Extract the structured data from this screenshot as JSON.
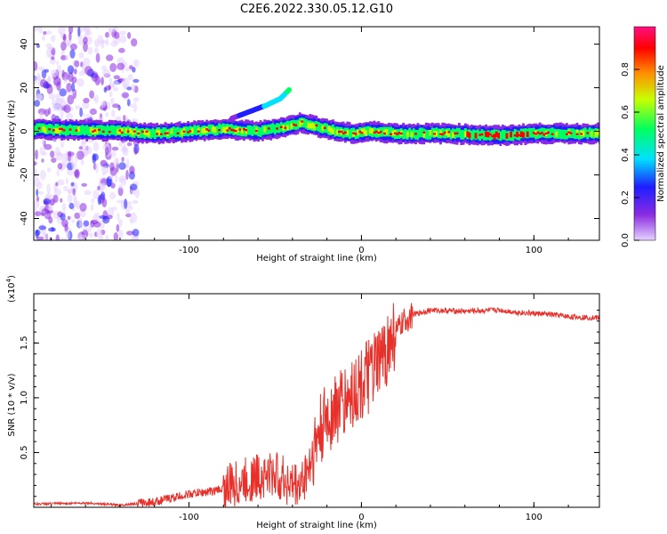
{
  "title": "C2E6.2022.330.05.12.G10",
  "chart_data": [
    {
      "type": "heatmap",
      "xlabel": "Height of straight line (km)",
      "ylabel": "Frequency (Hz)",
      "xlim": [
        -190,
        138
      ],
      "ylim": [
        -50,
        48
      ],
      "xticks": [
        -100,
        0,
        100
      ],
      "xtick_labels": [
        "-100",
        "0",
        "100"
      ],
      "yticks": [
        40,
        20,
        0,
        -20,
        -40
      ],
      "ytick_labels": [
        "40",
        "20",
        "0",
        "-20",
        "-40"
      ],
      "colorbar": {
        "label": "Normalized spectral amplitude",
        "range": [
          0,
          1
        ],
        "ticks": [
          0.0,
          0.2,
          0.4,
          0.6,
          0.8
        ],
        "tick_labels": [
          "0.0",
          "0.2",
          "0.4",
          "0.6",
          "0.8"
        ],
        "colors": [
          "#e6d2ff",
          "#8a2be2",
          "#1e1eff",
          "#00e0ff",
          "#00ff60",
          "#c8ff00",
          "#ff9000",
          "#ff0000",
          "#ff1080"
        ]
      },
      "ridge": {
        "description_points_x": [
          -190,
          -140,
          -120,
          -100,
          -80,
          -60,
          -45,
          -35,
          -25,
          -15,
          -5,
          5,
          20,
          50,
          80,
          100,
          138
        ],
        "frequency_y": [
          1,
          0,
          -1,
          0,
          1,
          0,
          2,
          4,
          2,
          0,
          -1,
          0,
          -1,
          -1,
          -2,
          -1,
          -1
        ]
      },
      "branch": {
        "x": [
          -75,
          -65,
          -55,
          -47,
          -42
        ],
        "y": [
          6,
          9,
          12,
          15,
          19
        ]
      },
      "scatter_region_x": [
        -190,
        -130
      ]
    },
    {
      "type": "line",
      "xlabel": "Height of straight line (km)",
      "ylabel": "SNR (10 * v/v)",
      "multiplier": "(x10",
      "multiplier_exp": "4",
      "multiplier_close": ")",
      "xlim": [
        -190,
        138
      ],
      "ylim": [
        0.0,
        1.95
      ],
      "xticks": [
        -100,
        0,
        100
      ],
      "xtick_labels": [
        "-100",
        "0",
        "100"
      ],
      "yticks": [
        0.5,
        1.0,
        1.5
      ],
      "ytick_labels": [
        "0.5",
        "1.0",
        "1.5"
      ],
      "series": [
        {
          "color": "#e8302a",
          "x": [
            -190,
            -160,
            -140,
            -120,
            -100,
            -85,
            -70,
            -60,
            -50,
            -40,
            -35,
            -30,
            -25,
            -20,
            -15,
            -10,
            -5,
            0,
            5,
            10,
            15,
            20,
            25,
            30,
            40,
            60,
            80,
            90,
            100,
            110,
            120,
            138
          ],
          "y": [
            0.03,
            0.04,
            0.02,
            0.05,
            0.12,
            0.15,
            0.22,
            0.28,
            0.3,
            0.2,
            0.2,
            0.4,
            0.65,
            0.8,
            0.9,
            0.95,
            1.05,
            1.12,
            1.2,
            1.3,
            1.45,
            1.6,
            1.7,
            1.76,
            1.8,
            1.79,
            1.8,
            1.78,
            1.77,
            1.76,
            1.74,
            1.73
          ]
        }
      ]
    }
  ]
}
